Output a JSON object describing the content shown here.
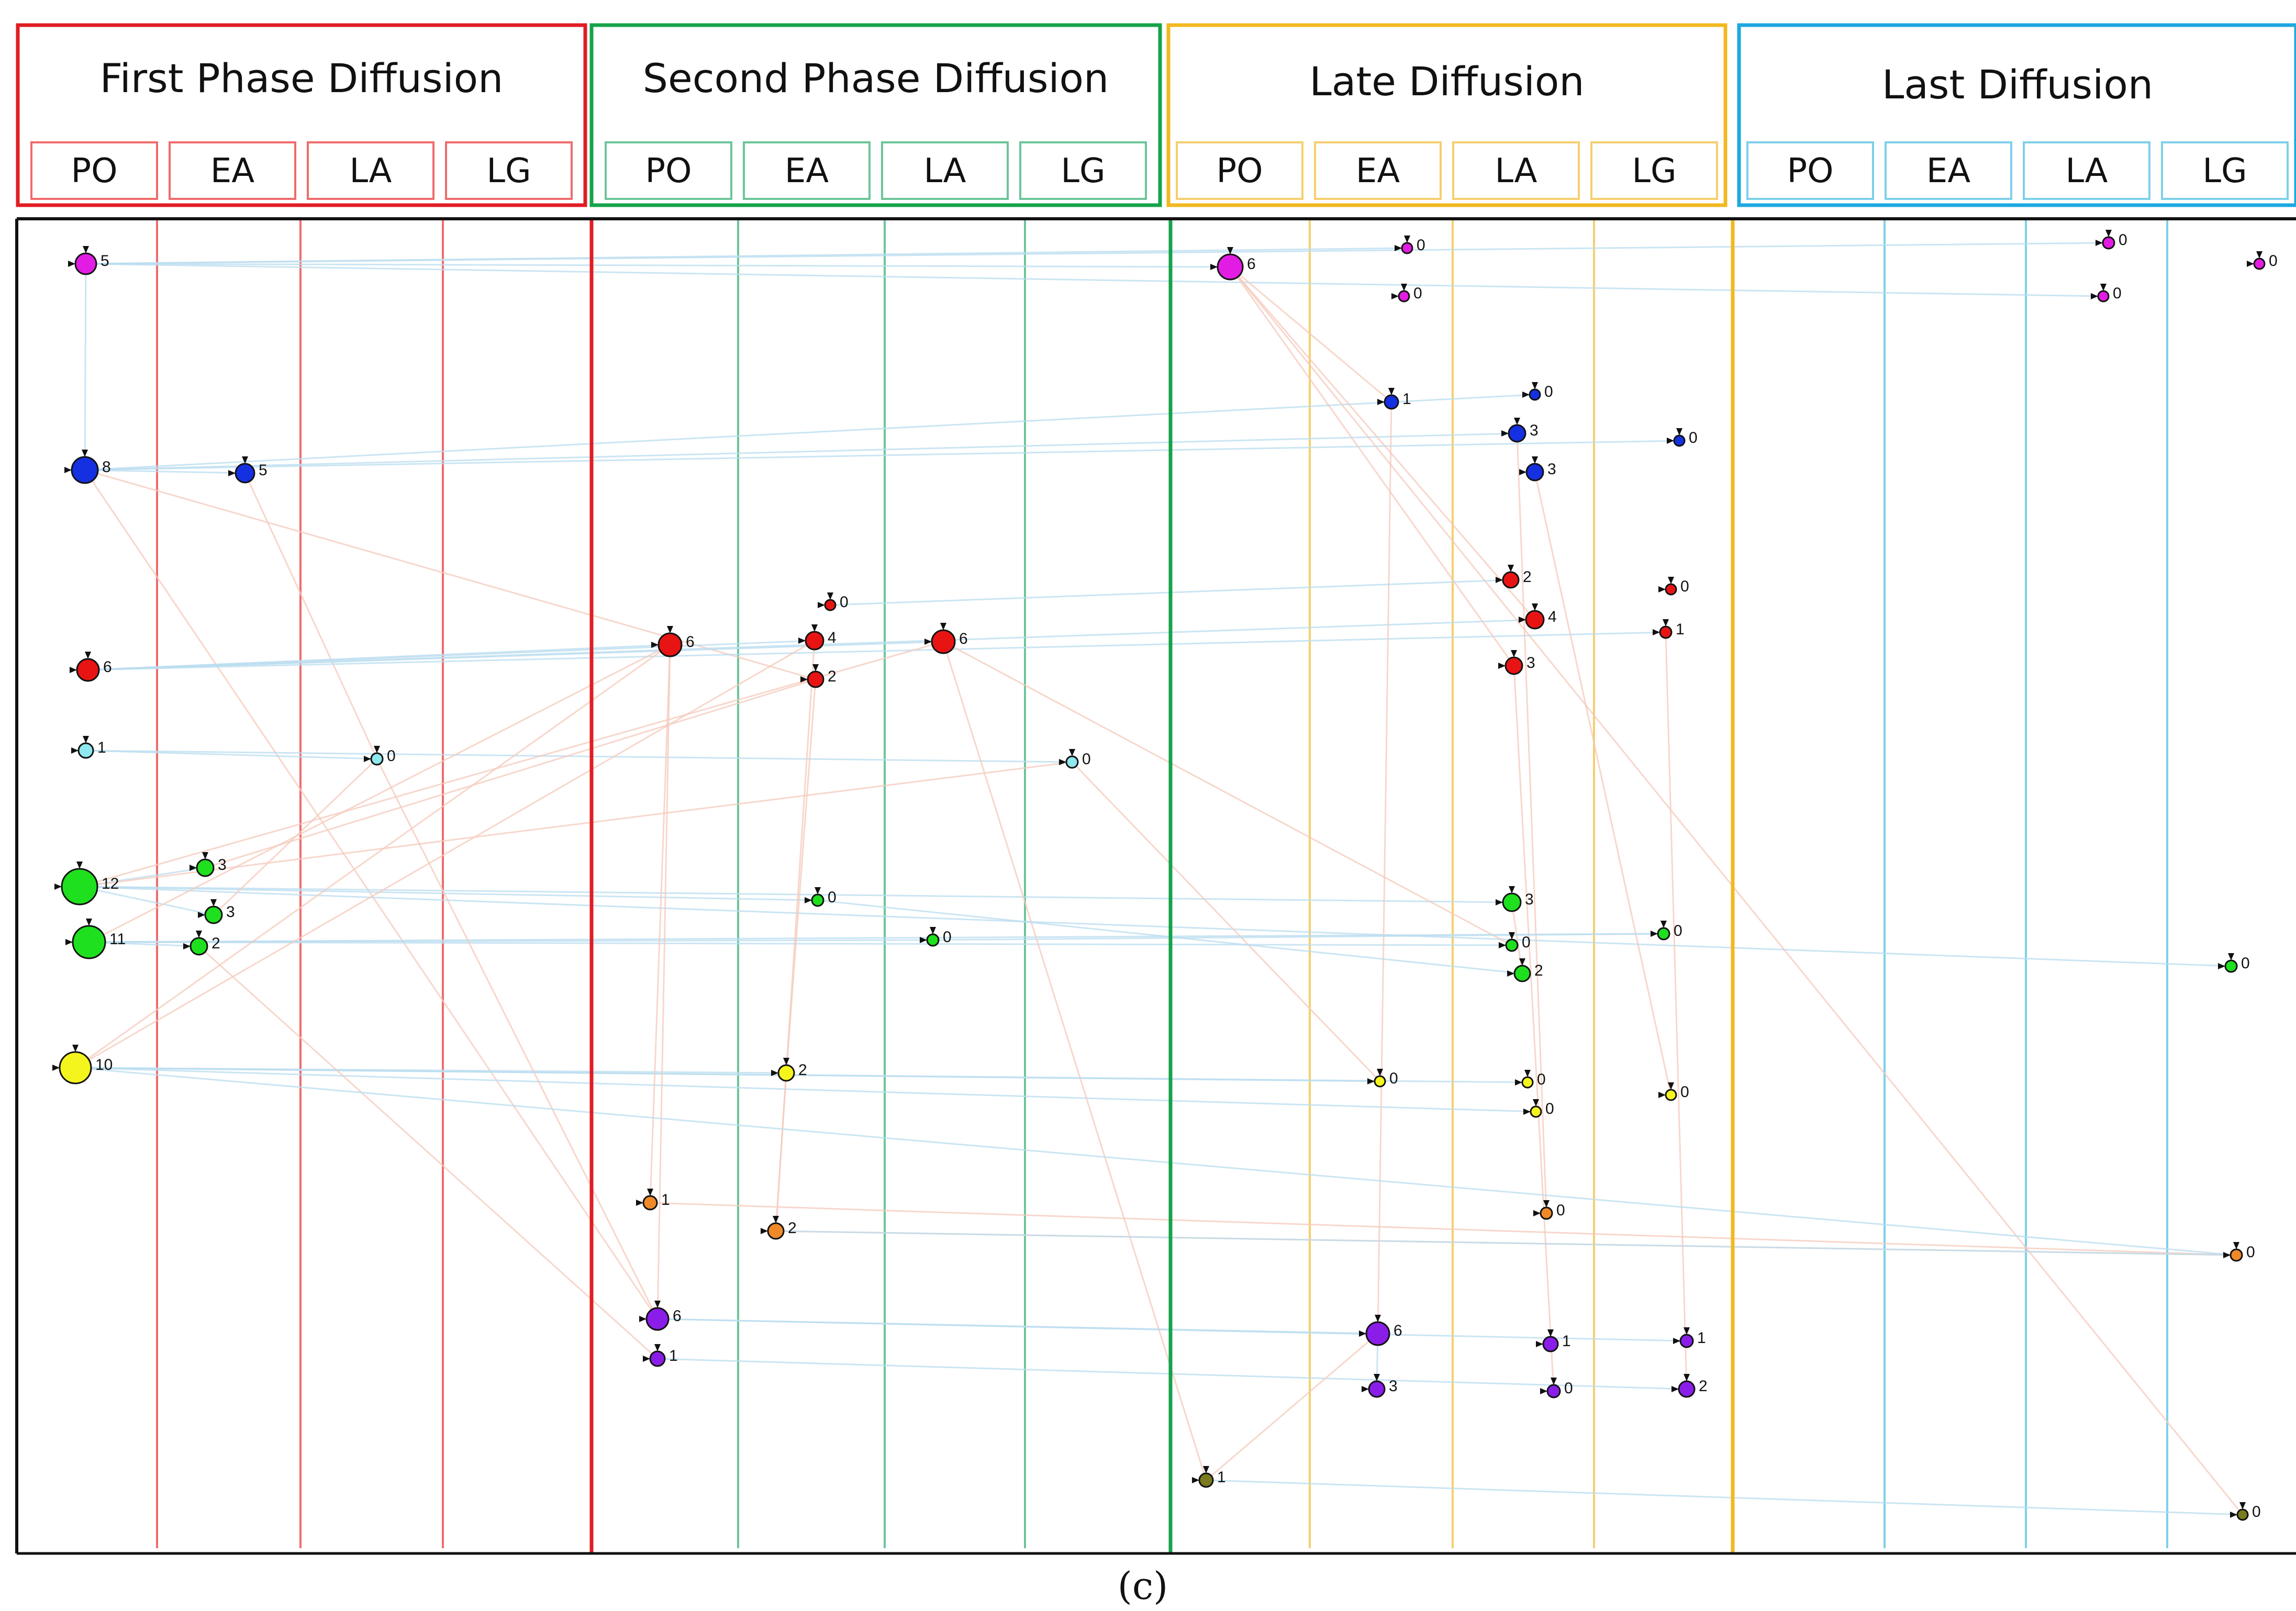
{
  "caption": "(c)",
  "phases": [
    {
      "title": "First Phase Diffusion",
      "color": "#e11d24",
      "light": "#f06b6b",
      "sublabels": [
        "PO",
        "EA",
        "LA",
        "LG"
      ]
    },
    {
      "title": "Second Phase  Diffusion",
      "color": "#16a34a",
      "light": "#6cc59a",
      "sublabels": [
        "PO",
        "EA",
        "LA",
        "LG"
      ]
    },
    {
      "title": "Late Diffusion",
      "color": "#f2b820",
      "light": "#f5cf6e",
      "sublabels": [
        "PO",
        "EA",
        "LA",
        "LG"
      ]
    },
    {
      "title": "Last Diffusion",
      "color": "#1ea8e0",
      "light": "#7dd0ea",
      "sublabels": [
        "PO",
        "EA",
        "LA",
        "LG"
      ]
    }
  ],
  "node_colors": {
    "magenta": "#e31ce3",
    "blue": "#1530e0",
    "red": "#e81414",
    "cyan": "#8ee8ee",
    "green": "#1ee01e",
    "yellow": "#f5f51e",
    "orange": "#f08a28",
    "purple": "#8a1ee8",
    "olive": "#7a7a1e"
  },
  "nodes": [
    {
      "c": "magenta",
      "label": "5"
    },
    {
      "c": "blue",
      "label": "8"
    },
    {
      "c": "blue",
      "label": "5"
    },
    {
      "c": "red",
      "label": "6"
    },
    {
      "c": "cyan",
      "label": "1"
    },
    {
      "c": "cyan",
      "label": "0"
    },
    {
      "c": "green",
      "label": "12"
    },
    {
      "c": "green",
      "label": "11"
    },
    {
      "c": "green",
      "label": "3"
    },
    {
      "c": "green",
      "label": "3"
    },
    {
      "c": "green",
      "label": "2"
    },
    {
      "c": "yellow",
      "label": "10"
    },
    {
      "c": "red",
      "label": "0"
    },
    {
      "c": "red",
      "label": "6"
    },
    {
      "c": "red",
      "label": "4"
    },
    {
      "c": "red",
      "label": "6"
    },
    {
      "c": "red",
      "label": "2"
    },
    {
      "c": "cyan",
      "label": "0"
    },
    {
      "c": "green",
      "label": "0"
    },
    {
      "c": "green",
      "label": "0"
    },
    {
      "c": "yellow",
      "label": "2"
    },
    {
      "c": "orange",
      "label": "1"
    },
    {
      "c": "orange",
      "label": "2"
    },
    {
      "c": "purple",
      "label": "6"
    },
    {
      "c": "purple",
      "label": "1"
    },
    {
      "c": "magenta",
      "label": "6"
    },
    {
      "c": "magenta",
      "label": "0"
    },
    {
      "c": "magenta",
      "label": "0"
    },
    {
      "c": "blue",
      "label": "1"
    },
    {
      "c": "blue",
      "label": "0"
    },
    {
      "c": "blue",
      "label": "3"
    },
    {
      "c": "blue",
      "label": "0"
    },
    {
      "c": "blue",
      "label": "3"
    },
    {
      "c": "red",
      "label": "2"
    },
    {
      "c": "red",
      "label": "0"
    },
    {
      "c": "red",
      "label": "4"
    },
    {
      "c": "red",
      "label": "1"
    },
    {
      "c": "red",
      "label": "3"
    },
    {
      "c": "green",
      "label": "3"
    },
    {
      "c": "green",
      "label": "0"
    },
    {
      "c": "green",
      "label": "0"
    },
    {
      "c": "green",
      "label": "2"
    },
    {
      "c": "yellow",
      "label": "0"
    },
    {
      "c": "yellow",
      "label": "0"
    },
    {
      "c": "yellow",
      "label": "0"
    },
    {
      "c": "yellow",
      "label": "0"
    },
    {
      "c": "orange",
      "label": "0"
    },
    {
      "c": "purple",
      "label": "6"
    },
    {
      "c": "purple",
      "label": "1"
    },
    {
      "c": "purple",
      "label": "1"
    },
    {
      "c": "purple",
      "label": "3"
    },
    {
      "c": "purple",
      "label": "0"
    },
    {
      "c": "purple",
      "label": "2"
    },
    {
      "c": "olive",
      "label": "1"
    },
    {
      "c": "magenta",
      "label": "0"
    },
    {
      "c": "magenta",
      "label": "0"
    },
    {
      "c": "magenta",
      "label": "0"
    },
    {
      "c": "green",
      "label": "0"
    },
    {
      "c": "orange",
      "label": "0"
    },
    {
      "c": "olive",
      "label": "0"
    }
  ],
  "edges": [
    {
      "s": 0,
      "t": 25,
      "k": "blue"
    },
    {
      "s": 0,
      "t": 26,
      "k": "blue"
    },
    {
      "s": 0,
      "t": 54,
      "k": "blue"
    },
    {
      "s": 0,
      "t": 56,
      "k": "blue"
    },
    {
      "s": 1,
      "t": 2,
      "k": "blue"
    },
    {
      "s": 1,
      "t": 30,
      "k": "blue"
    },
    {
      "s": 1,
      "t": 31,
      "k": "blue"
    },
    {
      "s": 1,
      "t": 29,
      "k": "blue"
    },
    {
      "s": 1,
      "t": 16,
      "k": "red"
    },
    {
      "s": 1,
      "t": 23,
      "k": "red"
    },
    {
      "s": 0,
      "t": 1,
      "k": "blue"
    },
    {
      "s": 2,
      "t": 5,
      "k": "red"
    },
    {
      "s": 3,
      "t": 13,
      "k": "blue"
    },
    {
      "s": 3,
      "t": 15,
      "k": "blue"
    },
    {
      "s": 3,
      "t": 35,
      "k": "blue"
    },
    {
      "s": 3,
      "t": 36,
      "k": "blue"
    },
    {
      "s": 3,
      "t": 14,
      "k": "blue"
    },
    {
      "s": 4,
      "t": 5,
      "k": "blue"
    },
    {
      "s": 4,
      "t": 17,
      "k": "blue"
    },
    {
      "s": 6,
      "t": 38,
      "k": "blue"
    },
    {
      "s": 6,
      "t": 57,
      "k": "blue"
    },
    {
      "s": 6,
      "t": 18,
      "k": "blue"
    },
    {
      "s": 7,
      "t": 19,
      "k": "blue"
    },
    {
      "s": 7,
      "t": 39,
      "k": "blue"
    },
    {
      "s": 7,
      "t": 40,
      "k": "blue"
    },
    {
      "s": 7,
      "t": 10,
      "k": "blue"
    },
    {
      "s": 6,
      "t": 8,
      "k": "blue"
    },
    {
      "s": 6,
      "t": 9,
      "k": "blue"
    },
    {
      "s": 11,
      "t": 20,
      "k": "blue"
    },
    {
      "s": 11,
      "t": 42,
      "k": "blue"
    },
    {
      "s": 11,
      "t": 43,
      "k": "blue"
    },
    {
      "s": 11,
      "t": 45,
      "k": "blue"
    },
    {
      "s": 11,
      "t": 14,
      "k": "red"
    },
    {
      "s": 11,
      "t": 13,
      "k": "red"
    },
    {
      "s": 7,
      "t": 13,
      "k": "red"
    },
    {
      "s": 6,
      "t": 15,
      "k": "red"
    },
    {
      "s": 13,
      "t": 23,
      "k": "red"
    },
    {
      "s": 13,
      "t": 21,
      "k": "red"
    },
    {
      "s": 14,
      "t": 22,
      "k": "red"
    },
    {
      "s": 23,
      "t": 47,
      "k": "blue"
    },
    {
      "s": 23,
      "t": 49,
      "k": "blue"
    },
    {
      "s": 24,
      "t": 52,
      "k": "blue"
    },
    {
      "s": 21,
      "t": 58,
      "k": "red"
    },
    {
      "s": 22,
      "t": 58,
      "k": "red"
    },
    {
      "s": 25,
      "t": 28,
      "k": "red"
    },
    {
      "s": 25,
      "t": 37,
      "k": "red"
    },
    {
      "s": 25,
      "t": 35,
      "k": "red"
    },
    {
      "s": 25,
      "t": 59,
      "k": "red"
    },
    {
      "s": 28,
      "t": 47,
      "k": "red"
    },
    {
      "s": 30,
      "t": 46,
      "k": "red"
    },
    {
      "s": 32,
      "t": 44,
      "k": "red"
    },
    {
      "s": 37,
      "t": 51,
      "k": "red"
    },
    {
      "s": 38,
      "t": 41,
      "k": "red"
    },
    {
      "s": 36,
      "t": 52,
      "k": "red"
    },
    {
      "s": 47,
      "t": 50,
      "k": "blue"
    },
    {
      "s": 53,
      "t": 59,
      "k": "blue"
    },
    {
      "s": 47,
      "t": 53,
      "k": "red"
    },
    {
      "s": 15,
      "t": 39,
      "k": "red"
    },
    {
      "s": 15,
      "t": 53,
      "k": "red"
    },
    {
      "s": 17,
      "t": 42,
      "k": "red"
    },
    {
      "s": 20,
      "t": 22,
      "k": "red"
    },
    {
      "s": 16,
      "t": 20,
      "k": "red"
    },
    {
      "s": 8,
      "t": 16,
      "k": "red"
    },
    {
      "s": 9,
      "t": 5,
      "k": "red"
    },
    {
      "s": 10,
      "t": 24,
      "k": "red"
    },
    {
      "s": 5,
      "t": 23,
      "k": "red"
    },
    {
      "s": 12,
      "t": 33,
      "k": "blue"
    },
    {
      "s": 18,
      "t": 41,
      "k": "blue"
    },
    {
      "s": 19,
      "t": 40,
      "k": "blue"
    },
    {
      "s": 11,
      "t": 58,
      "k": "blue"
    },
    {
      "s": 22,
      "t": 58,
      "k": "blue"
    },
    {
      "s": 6,
      "t": 17,
      "k": "red"
    }
  ]
}
